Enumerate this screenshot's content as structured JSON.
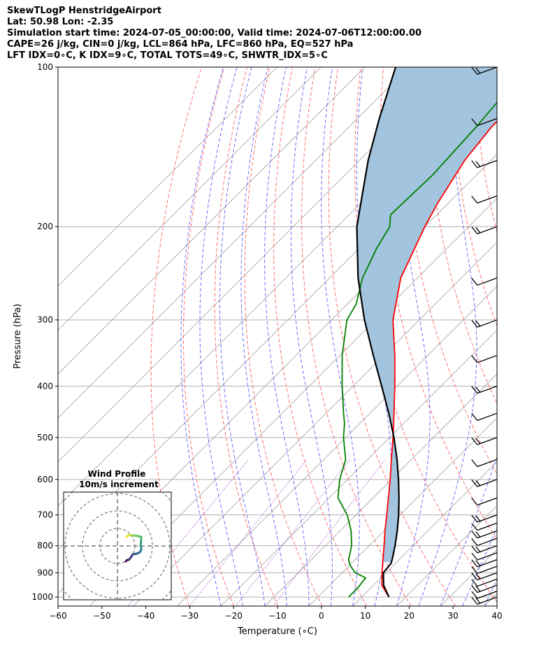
{
  "header": {
    "line1": "SkewTLogP HenstridgeAirport",
    "line2": "Lat: 50.98   Lon: -2.35",
    "line3": "Simulation start time: 2024-07-05_00:00:00, Valid time: 2024-07-06T12:00:00.00",
    "line4": "CAPE=26 j/kg, CIN=0 j/kg, LCL=864 hPa, LFC=860 hPa, EQ=527 hPa",
    "line5": "LFT IDX=0∘C, K IDX=9∘C, TOTAL TOTS=49∘C, SHWTR_IDX=5∘C"
  },
  "chart_data": [
    {
      "type": "line",
      "subtype": "skew-t log-p",
      "xlabel": "Temperature (∘C)",
      "ylabel": "Pressure (hPa)",
      "xlim": [
        -60,
        40
      ],
      "ylim": [
        1040,
        100
      ],
      "y_scale": "log",
      "x_ticks": [
        "−60",
        "−50",
        "−40",
        "−30",
        "−20",
        "−10",
        "0",
        "10",
        "20",
        "30",
        "40"
      ],
      "y_ticks": [
        "100",
        "200",
        "300",
        "400",
        "500",
        "600",
        "700",
        "800",
        "900",
        "1000"
      ],
      "grid": true,
      "series": [
        {
          "name": "temperature",
          "color": "#ff0000",
          "points": [
            [
              1000,
              16.2
            ],
            [
              950,
              11.9
            ],
            [
              900,
              9.1
            ],
            [
              850,
              6.3
            ],
            [
              800,
              3.4
            ],
            [
              750,
              0.2
            ],
            [
              700,
              -3.0
            ],
            [
              650,
              -6.5
            ],
            [
              600,
              -10.3
            ],
            [
              550,
              -14.6
            ],
            [
              500,
              -19.2
            ],
            [
              450,
              -24.5
            ],
            [
              400,
              -30.5
            ],
            [
              350,
              -37.5
            ],
            [
              300,
              -46.0
            ],
            [
              250,
              -53.8
            ],
            [
              200,
              -60.0
            ],
            [
              180,
              -62.5
            ],
            [
              150,
              -66.0
            ],
            [
              130,
              -67.5
            ],
            [
              115,
              -67.5
            ],
            [
              100,
              -67.8
            ]
          ]
        },
        {
          "name": "dewpoint",
          "color": "#008000",
          "points": [
            [
              1000,
              7.0
            ],
            [
              960,
              7.0
            ],
            [
              920,
              6.5
            ],
            [
              900,
              3.0
            ],
            [
              870,
              0.0
            ],
            [
              850,
              -1.5
            ],
            [
              800,
              -4.0
            ],
            [
              750,
              -7.5
            ],
            [
              700,
              -12.0
            ],
            [
              650,
              -18.0
            ],
            [
              600,
              -21.8
            ],
            [
              550,
              -25.0
            ],
            [
              500,
              -30.5
            ],
            [
              470,
              -33.5
            ],
            [
              450,
              -36.0
            ],
            [
              400,
              -42.5
            ],
            [
              350,
              -49.5
            ],
            [
              300,
              -56.5
            ],
            [
              280,
              -58.0
            ],
            [
              250,
              -62.5
            ],
            [
              220,
              -66.0
            ],
            [
              200,
              -68.0
            ],
            [
              190,
              -70.5
            ],
            [
              160,
              -70.0
            ],
            [
              130,
              -71.0
            ],
            [
              100,
              -73.0
            ]
          ]
        },
        {
          "name": "parcel",
          "color": "#000000",
          "points": [
            [
              1000,
              16.2
            ],
            [
              950,
              12.3
            ],
            [
              900,
              9.4
            ],
            [
              864,
              9.0
            ],
            [
              850,
              8.4
            ],
            [
              800,
              5.9
            ],
            [
              750,
              3.0
            ],
            [
              700,
              -0.3
            ],
            [
              650,
              -4.1
            ],
            [
              600,
              -8.4
            ],
            [
              550,
              -13.3
            ],
            [
              500,
              -19.0
            ],
            [
              450,
              -25.7
            ],
            [
              400,
              -33.5
            ],
            [
              350,
              -42.4
            ],
            [
              300,
              -52.5
            ],
            [
              250,
              -63.5
            ],
            [
              200,
              -75.5
            ],
            [
              150,
              -88.0
            ],
            [
              125,
              -95.0
            ],
            [
              100,
              -103.0
            ]
          ]
        }
      ],
      "cape_shading_color": "#a3c4de",
      "wind_barbs": {
        "pressures": [
          1000,
          975,
          950,
          925,
          900,
          875,
          850,
          825,
          800,
          775,
          750,
          725,
          700,
          650,
          600,
          550,
          500,
          450,
          400,
          350,
          300,
          250,
          200,
          175,
          150,
          125,
          100
        ]
      }
    },
    {
      "type": "scatter",
      "subtype": "hodograph",
      "title": "Wind Profile",
      "subtitle": "10m/s increment",
      "colormap": [
        "#440154",
        "#3b528b",
        "#21918c",
        "#5ec962",
        "#fde725"
      ],
      "points": [
        [
          12,
          -22
        ],
        [
          14,
          -20
        ],
        [
          16,
          -20
        ],
        [
          18,
          -18
        ],
        [
          22,
          -12
        ],
        [
          28,
          -11
        ],
        [
          32,
          -9
        ],
        [
          34,
          -6
        ],
        [
          34,
          -2
        ],
        [
          33,
          0
        ],
        [
          34,
          8
        ],
        [
          34,
          13
        ],
        [
          30,
          14
        ],
        [
          24,
          15
        ],
        [
          20,
          15
        ],
        [
          17,
          16
        ],
        [
          14,
          14
        ],
        [
          13,
          13
        ]
      ]
    }
  ]
}
